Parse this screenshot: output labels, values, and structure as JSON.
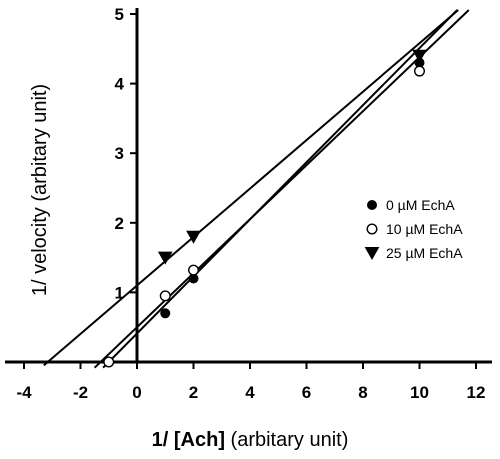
{
  "chart_data": {
    "type": "scatter",
    "title": "",
    "xlabel_bold": "1/ [Ach]",
    "xlabel_rest": " (arbitary unit)",
    "ylabel": "1/ velocity (arbitary unit)",
    "xlim": [
      -5,
      12
    ],
    "ylim": [
      -0.4,
      5
    ],
    "xticks": [
      -4,
      -2,
      0,
      2,
      4,
      6,
      8,
      10,
      12
    ],
    "yticks": [
      1,
      2,
      3,
      4,
      5
    ],
    "grid": false,
    "legend_position": "right",
    "series": [
      {
        "name": "0 µM EchA",
        "marker": "filled-circle",
        "points": [
          [
            -1,
            0.0
          ],
          [
            1,
            0.7
          ],
          [
            2,
            1.2
          ],
          [
            10,
            4.3
          ]
        ],
        "fit": {
          "slope": 0.41,
          "intercept": 0.41,
          "x_range": [
            -1.2,
            12.5
          ]
        }
      },
      {
        "name": "10 µM EchA",
        "marker": "open-circle",
        "points": [
          [
            -1,
            0.0
          ],
          [
            1,
            0.95
          ],
          [
            2,
            1.32
          ],
          [
            10,
            4.18
          ]
        ],
        "fit": {
          "slope": 0.388,
          "intercept": 0.5,
          "x_range": [
            -1.5,
            12.5
          ]
        }
      },
      {
        "name": "25 µM EchA",
        "marker": "filled-triangle-down",
        "points": [
          [
            1,
            1.5
          ],
          [
            2,
            1.8
          ],
          [
            10,
            4.4
          ]
        ],
        "fit": {
          "slope": 0.348,
          "intercept": 1.1,
          "x_range": [
            -3.3,
            12.5
          ]
        }
      }
    ]
  }
}
